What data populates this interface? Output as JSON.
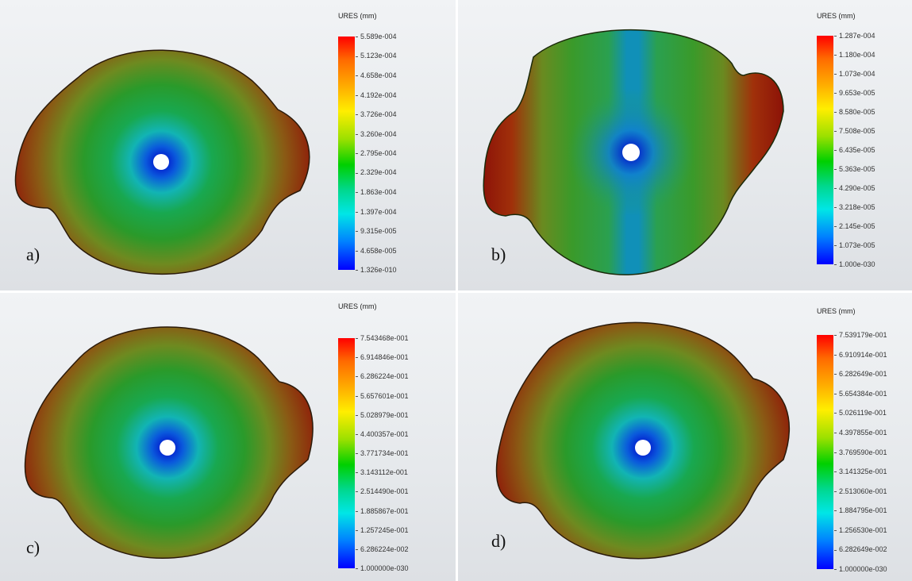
{
  "panels": [
    {
      "id": "a",
      "label": "a)",
      "legend_title": "URES (mm)",
      "ticks": [
        "5.589e-004",
        "5.123e-004",
        "4.658e-004",
        "4.192e-004",
        "3.726e-004",
        "3.260e-004",
        "2.795e-004",
        "2.329e-004",
        "1.863e-004",
        "1.397e-004",
        "9.315e-005",
        "4.658e-005",
        "1.326e-010"
      ]
    },
    {
      "id": "b",
      "label": "b)",
      "legend_title": "URES (mm)",
      "ticks": [
        "1.287e-004",
        "1.180e-004",
        "1.073e-004",
        "9.653e-005",
        "8.580e-005",
        "7.508e-005",
        "6.435e-005",
        "5.363e-005",
        "4.290e-005",
        "3.218e-005",
        "2.145e-005",
        "1.073e-005",
        "1.000e-030"
      ]
    },
    {
      "id": "c",
      "label": "c)",
      "legend_title": "URES (mm)",
      "ticks": [
        "7.543468e-001",
        "6.914846e-001",
        "6.286224e-001",
        "5.657601e-001",
        "5.028979e-001",
        "4.400357e-001",
        "3.771734e-001",
        "3.143112e-001",
        "2.514490e-001",
        "1.885867e-001",
        "1.257245e-001",
        "6.286224e-002",
        "1.000000e-030"
      ]
    },
    {
      "id": "d",
      "label": "d)",
      "legend_title": "URES (mm)",
      "ticks": [
        "7.539179e-001",
        "6.910914e-001",
        "6.282649e-001",
        "5.654384e-001",
        "5.026119e-001",
        "4.397855e-001",
        "3.769590e-001",
        "3.141325e-001",
        "2.513060e-001",
        "1.884795e-001",
        "1.256530e-001",
        "6.282649e-002",
        "1.000000e-030"
      ]
    }
  ],
  "colors": {
    "max": "#ff0000",
    "mid": "#00d000",
    "min": "#0000ff",
    "hole": "#ffffff"
  }
}
